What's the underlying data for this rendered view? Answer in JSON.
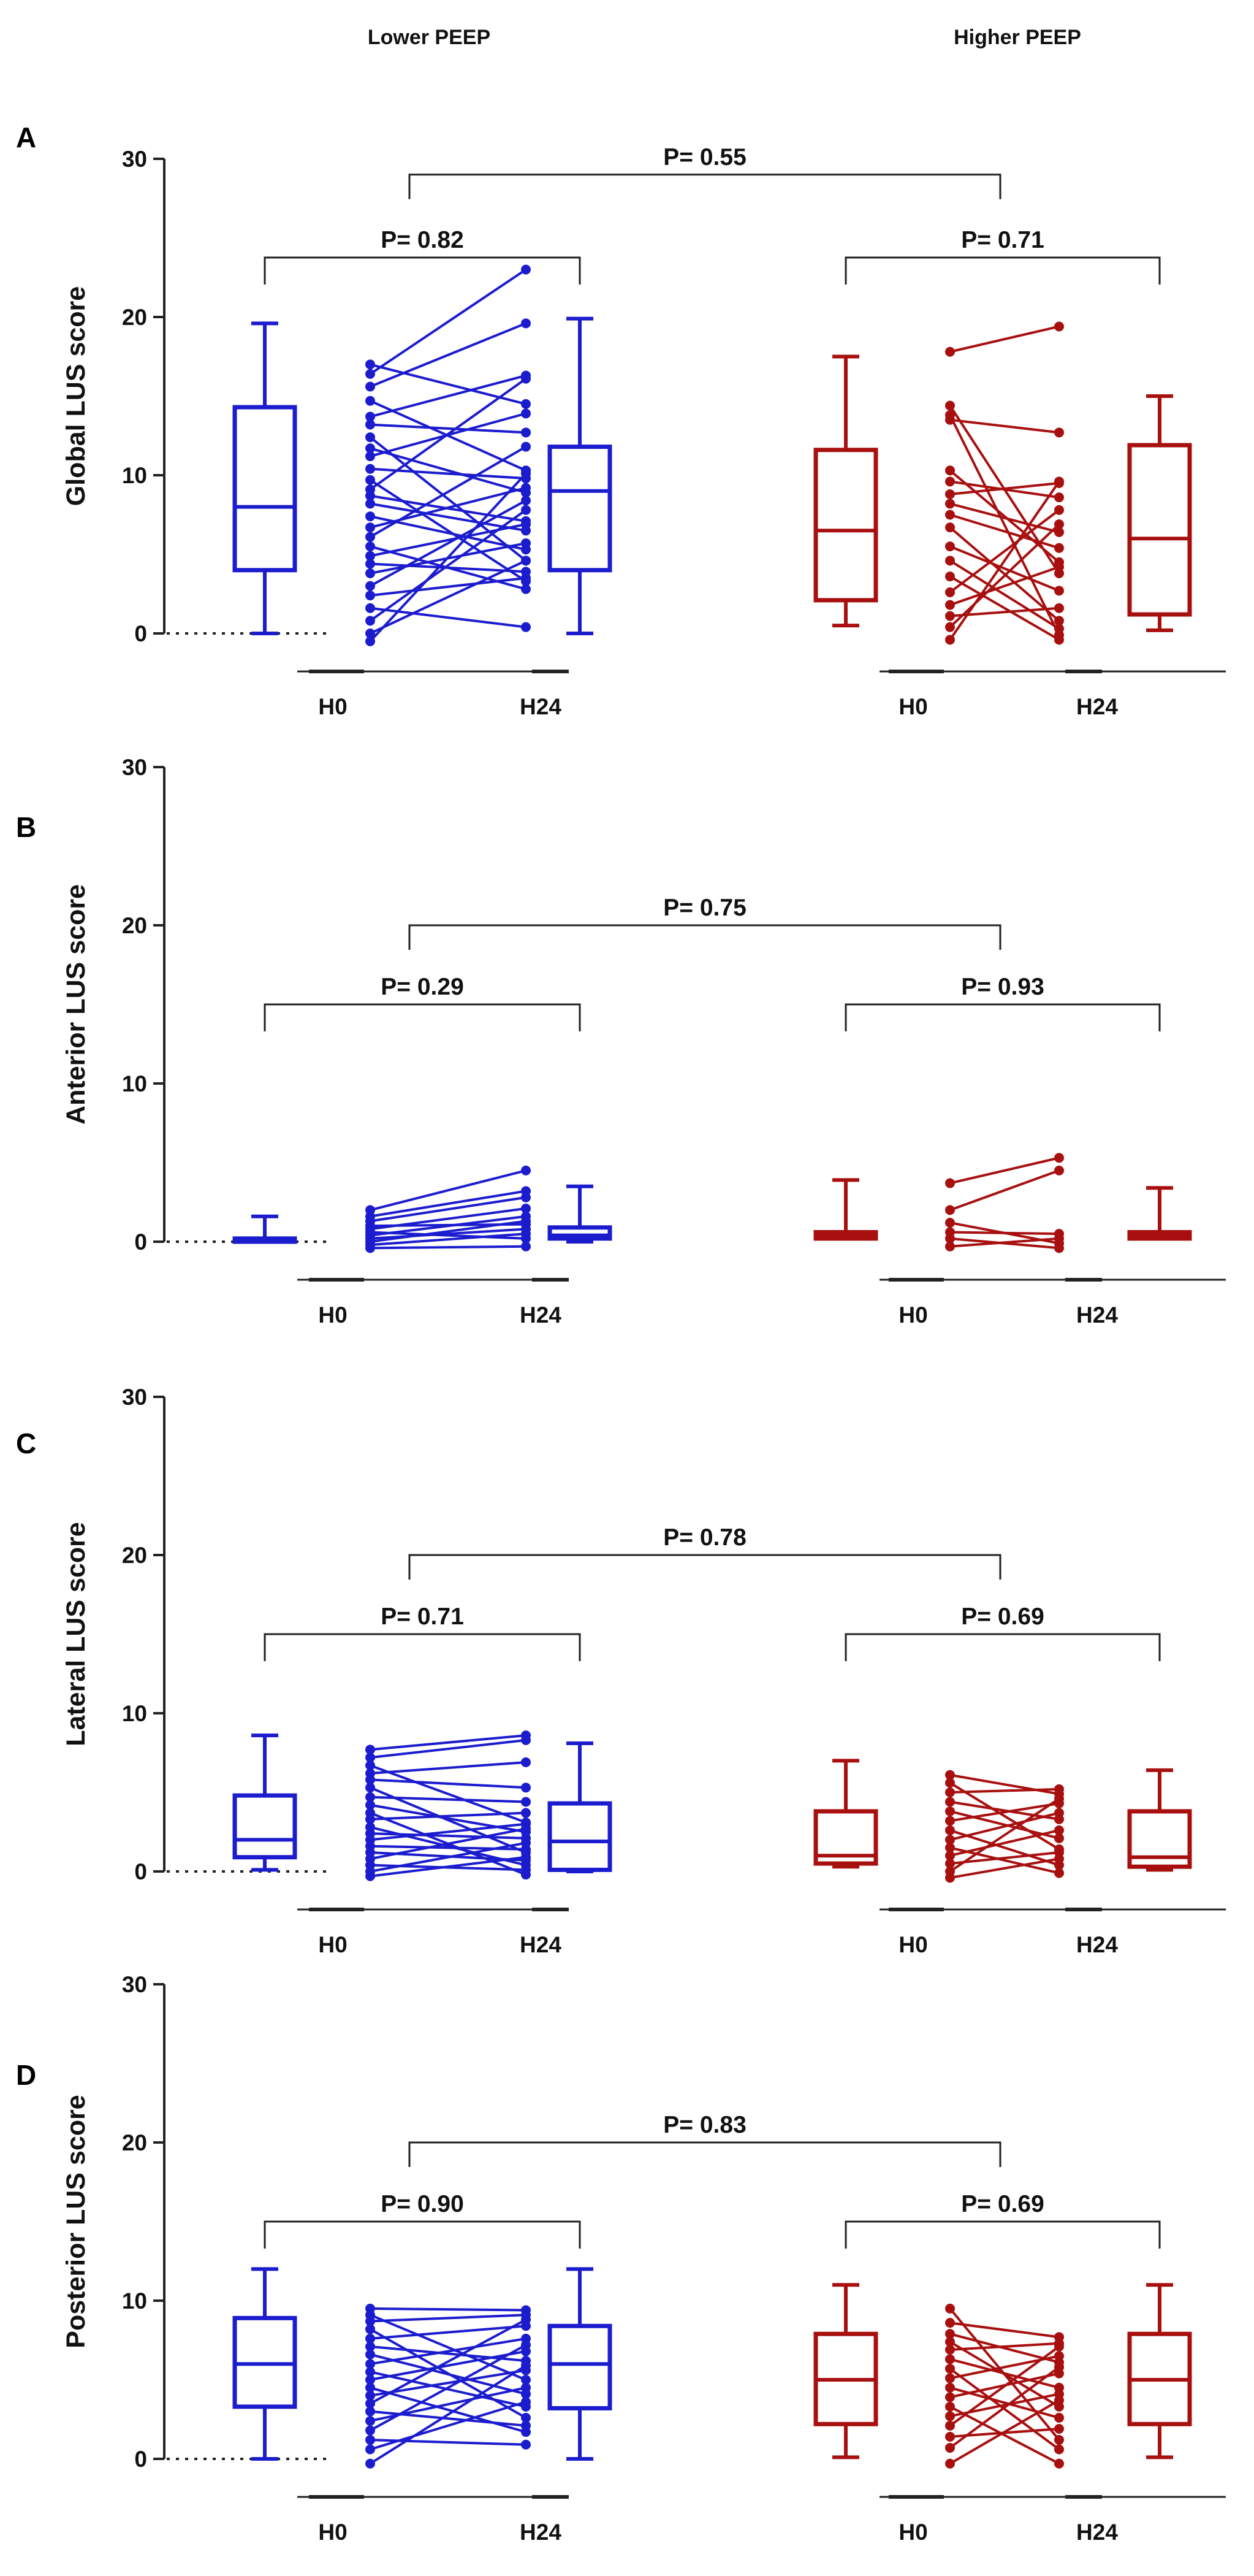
{
  "headers": {
    "left": "Lower PEEP",
    "right": "Higher PEEP"
  },
  "colors": {
    "lower": "#1c1ccf",
    "higher": "#a81010",
    "axis": "#222222"
  },
  "chart_data": [
    {
      "type": "box_paired",
      "panel": "A",
      "ylabel": "Global LUS score",
      "ylim": [
        0,
        30
      ],
      "yticks": [
        "0",
        "10",
        "20",
        "30"
      ],
      "xticks": {
        "lower": [
          "H0",
          "H24"
        ],
        "higher": [
          "H0",
          "H24"
        ]
      },
      "p_values": {
        "between_groups": "P= 0.55",
        "lower": "P= 0.82",
        "higher": "P= 0.71"
      },
      "lower": {
        "box_h0": {
          "min": 0,
          "q1": 4,
          "median": 8,
          "q3": 14.3,
          "max": 19.6
        },
        "box_h24": {
          "min": 0,
          "q1": 4,
          "median": 9,
          "q3": 11.8,
          "max": 19.9
        },
        "pairs": [
          [
            17,
            14.5
          ],
          [
            16.4,
            23
          ],
          [
            15.6,
            19.6
          ],
          [
            14.7,
            10.3
          ],
          [
            13.7,
            16.3
          ],
          [
            13.2,
            12.7
          ],
          [
            12.4,
            4.6
          ],
          [
            11.7,
            8.9
          ],
          [
            11.2,
            13.9
          ],
          [
            10.4,
            9.8
          ],
          [
            9.7,
            3.3
          ],
          [
            9.1,
            16.1
          ],
          [
            8.7,
            7.1
          ],
          [
            8.2,
            6.5
          ],
          [
            7.4,
            5.3
          ],
          [
            6.7,
            9.2
          ],
          [
            6.1,
            11.8
          ],
          [
            5.5,
            2.8
          ],
          [
            4.9,
            6.9
          ],
          [
            4.4,
            3.9
          ],
          [
            3.8,
            5.7
          ],
          [
            3,
            8.4
          ],
          [
            2.4,
            3.5
          ],
          [
            1.6,
            0.4
          ],
          [
            0.8,
            7.8
          ],
          [
            0,
            4.6
          ],
          [
            -0.5,
            10.1
          ]
        ]
      },
      "higher": {
        "box_h0": {
          "min": 0.5,
          "q1": 2.1,
          "median": 6.5,
          "q3": 11.6,
          "max": 17.5
        },
        "box_h24": {
          "min": 0.2,
          "q1": 1.2,
          "median": 6,
          "q3": 11.9,
          "max": 15
        },
        "pairs": [
          [
            17.8,
            19.4
          ],
          [
            14.4,
            3.8
          ],
          [
            13.8,
            -0.1
          ],
          [
            13.5,
            12.7
          ],
          [
            10.3,
            4.5
          ],
          [
            9.6,
            8.6
          ],
          [
            8.8,
            9.5
          ],
          [
            8.2,
            6.4
          ],
          [
            7.5,
            5.4
          ],
          [
            6.7,
            0.8
          ],
          [
            5.5,
            2.7
          ],
          [
            4.6,
            0.3
          ],
          [
            3.6,
            -0.4
          ],
          [
            2.6,
            7.8
          ],
          [
            1.8,
            4.2
          ],
          [
            1.1,
            1.6
          ],
          [
            0.4,
            6.9
          ],
          [
            -0.4,
            9.6
          ]
        ]
      }
    },
    {
      "type": "box_paired",
      "panel": "B",
      "ylabel": "Anterior LUS score",
      "ylim": [
        0,
        30
      ],
      "yticks": [
        "0",
        "10",
        "20",
        "30"
      ],
      "xticks": {
        "lower": [
          "H0",
          "H24"
        ],
        "higher": [
          "H0",
          "H24"
        ]
      },
      "p_values": {
        "between_groups": "P= 0.75",
        "lower": "P= 0.29",
        "higher": "P= 0.93"
      },
      "lower": {
        "box_h0": {
          "min": 0,
          "q1": 0,
          "median": 0,
          "q3": 0.2,
          "max": 1.6
        },
        "box_h24": {
          "min": 0,
          "q1": 0.2,
          "median": 0.4,
          "q3": 0.9,
          "max": 3.5
        },
        "pairs": [
          [
            2,
            4.5
          ],
          [
            1.6,
            3.2
          ],
          [
            1.3,
            2.8
          ],
          [
            1,
            1.1
          ],
          [
            0.8,
            2.1
          ],
          [
            0.6,
            0.2
          ],
          [
            0.4,
            1.6
          ],
          [
            0.2,
            0.8
          ],
          [
            0,
            1.3
          ],
          [
            -0.2,
            0.5
          ],
          [
            -0.4,
            -0.3
          ]
        ]
      },
      "higher": {
        "box_h0": {
          "min": 0.2,
          "q1": 0.2,
          "median": 0.4,
          "q3": 0.6,
          "max": 3.9
        },
        "box_h24": {
          "min": 0.2,
          "q1": 0.2,
          "median": 0.4,
          "q3": 0.6,
          "max": 3.4
        },
        "pairs": [
          [
            3.7,
            5.3
          ],
          [
            2,
            4.5
          ],
          [
            1.2,
            -0.1
          ],
          [
            0.6,
            0.5
          ],
          [
            0.2,
            -0.4
          ],
          [
            -0.3,
            0.2
          ]
        ]
      }
    },
    {
      "type": "box_paired",
      "panel": "C",
      "ylabel": "Lateral LUS score",
      "ylim": [
        0,
        30
      ],
      "yticks": [
        "0",
        "10",
        "20",
        "30"
      ],
      "xticks": {
        "lower": [
          "H0",
          "H24"
        ],
        "higher": [
          "H0",
          "H24"
        ]
      },
      "p_values": {
        "between_groups": "P= 0.78",
        "lower": "P= 0.71",
        "higher": "P= 0.69"
      },
      "lower": {
        "box_h0": {
          "min": 0.1,
          "q1": 0.9,
          "median": 2,
          "q3": 4.8,
          "max": 8.6
        },
        "box_h24": {
          "min": 0,
          "q1": 0.1,
          "median": 1.9,
          "q3": 4.3,
          "max": 8.1
        },
        "pairs": [
          [
            7.7,
            8.6
          ],
          [
            7.2,
            8.3
          ],
          [
            6.7,
            3.1
          ],
          [
            6.2,
            6.9
          ],
          [
            5.8,
            5.3
          ],
          [
            5.3,
            1.2
          ],
          [
            4.7,
            4.4
          ],
          [
            4.2,
            2.5
          ],
          [
            3.7,
            -0.2
          ],
          [
            3.3,
            3.7
          ],
          [
            2.8,
            0.4
          ],
          [
            2.4,
            2.1
          ],
          [
            2,
            3
          ],
          [
            1.6,
            1.4
          ],
          [
            1.2,
            0.7
          ],
          [
            0.8,
            2.7
          ],
          [
            0.4,
            0.1
          ],
          [
            0,
            1.8
          ],
          [
            -0.3,
            0.9
          ]
        ]
      },
      "higher": {
        "box_h0": {
          "min": 0.3,
          "q1": 0.5,
          "median": 1,
          "q3": 3.8,
          "max": 7
        },
        "box_h24": {
          "min": 0.1,
          "q1": 0.3,
          "median": 0.9,
          "q3": 3.8,
          "max": 6.4
        },
        "pairs": [
          [
            6.1,
            4.9
          ],
          [
            5.6,
            1.4
          ],
          [
            5,
            5.2
          ],
          [
            4.4,
            3.3
          ],
          [
            3.8,
            2.1
          ],
          [
            3.2,
            4.3
          ],
          [
            2.6,
            0.4
          ],
          [
            2,
            3.7
          ],
          [
            1.5,
            -0.1
          ],
          [
            1,
            2.6
          ],
          [
            0.5,
            1.2
          ],
          [
            0,
            4.6
          ],
          [
            -0.4,
            0.8
          ]
        ]
      }
    },
    {
      "type": "box_paired",
      "panel": "D",
      "ylabel": "Posterior LUS score",
      "ylim": [
        0,
        30
      ],
      "yticks": [
        "0",
        "10",
        "20",
        "30"
      ],
      "xticks": {
        "lower": [
          "H0",
          "H24"
        ],
        "higher": [
          "H0",
          "H24"
        ]
      },
      "p_values": {
        "between_groups": "P= 0.83",
        "lower": "P= 0.90",
        "higher": "P= 0.69"
      },
      "lower": {
        "box_h0": {
          "min": 0,
          "q1": 3.3,
          "median": 6,
          "q3": 8.9,
          "max": 12
        },
        "box_h24": {
          "min": 0,
          "q1": 3.2,
          "median": 6,
          "q3": 8.4,
          "max": 12
        },
        "pairs": [
          [
            9.5,
            9.4
          ],
          [
            9.1,
            5
          ],
          [
            8.7,
            9.1
          ],
          [
            8.2,
            2.6
          ],
          [
            7.6,
            8.4
          ],
          [
            7.1,
            6.2
          ],
          [
            6.6,
            4.1
          ],
          [
            6,
            7.6
          ],
          [
            5.5,
            3.3
          ],
          [
            5,
            6.8
          ],
          [
            4.5,
            1.7
          ],
          [
            4,
            5.6
          ],
          [
            3.5,
            8.8
          ],
          [
            3,
            2.1
          ],
          [
            2.4,
            4.5
          ],
          [
            1.8,
            7.2
          ],
          [
            1.2,
            0.9
          ],
          [
            0.6,
            3.6
          ],
          [
            -0.3,
            5.9
          ]
        ]
      },
      "higher": {
        "box_h0": {
          "min": 0.1,
          "q1": 2.2,
          "median": 5,
          "q3": 7.9,
          "max": 11
        },
        "box_h24": {
          "min": 0.1,
          "q1": 2.2,
          "median": 5,
          "q3": 7.9,
          "max": 11
        },
        "pairs": [
          [
            9.5,
            1.2
          ],
          [
            8.6,
            7.7
          ],
          [
            7.9,
            6.1
          ],
          [
            7.4,
            3.3
          ],
          [
            6.9,
            7.3
          ],
          [
            6.3,
            4.5
          ],
          [
            5.7,
            0.6
          ],
          [
            5.1,
            6.5
          ],
          [
            4.5,
            2.6
          ],
          [
            3.9,
            5.4
          ],
          [
            3.3,
            -0.3
          ],
          [
            2.7,
            4.1
          ],
          [
            2.1,
            7.1
          ],
          [
            1.4,
            1.9
          ],
          [
            0.7,
            5.8
          ],
          [
            -0.3,
            3.7
          ]
        ]
      }
    }
  ]
}
